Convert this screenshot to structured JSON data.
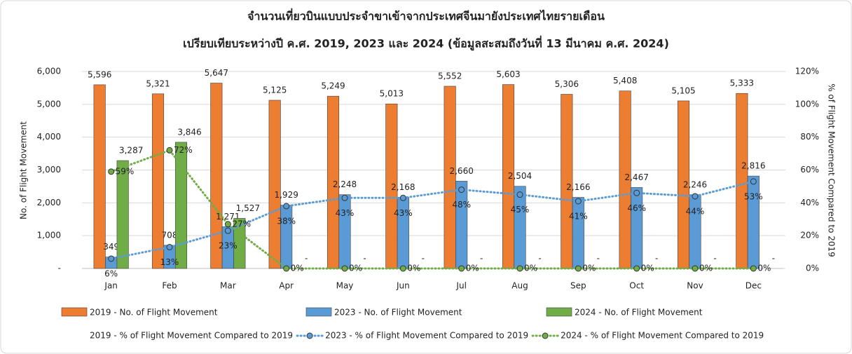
{
  "chart_data": {
    "type": "bar",
    "title": "จำนวนเที่ยวบินแบบประจำขาเข้าจากประเทศจีนมายังประเทศไทยรายเดือน",
    "subtitle": "เปรียบเทียบระหว่างปี ค.ศ. 2019, 2023 และ 2024 (ข้อมูลสะสมถึงวันที่ 13 มีนาคม ค.ศ. 2024)",
    "y_label": "No. of Flight Movement",
    "y2_label": "% of Flight Movement Compared to 2019",
    "categories": [
      "Jan",
      "Feb",
      "Mar",
      "Apr",
      "May",
      "Jun",
      "Jul",
      "Aug",
      "Sep",
      "Oct",
      "Nov",
      "Dec"
    ],
    "ylim": [
      0,
      6000
    ],
    "yticks": [
      {
        "value": 0,
        "label": "-"
      },
      {
        "value": 1000,
        "label": "1,000"
      },
      {
        "value": 2000,
        "label": "2,000"
      },
      {
        "value": 3000,
        "label": "3,000"
      },
      {
        "value": 4000,
        "label": "4,000"
      },
      {
        "value": 5000,
        "label": "5,000"
      },
      {
        "value": 6000,
        "label": "6,000"
      }
    ],
    "y2lim": [
      0,
      120
    ],
    "y2ticks": [
      {
        "value": 0,
        "label": "0%"
      },
      {
        "value": 20,
        "label": "20%"
      },
      {
        "value": 40,
        "label": "40%"
      },
      {
        "value": 60,
        "label": "60%"
      },
      {
        "value": 80,
        "label": "80%"
      },
      {
        "value": 100,
        "label": "100%"
      },
      {
        "value": 120,
        "label": "120%"
      }
    ],
    "grid": true,
    "series": [
      {
        "name": "2019 - No. of Flight Movement",
        "type": "bar",
        "color": "#ed7d31",
        "values": [
          5596,
          5321,
          5647,
          5125,
          5249,
          5013,
          5552,
          5603,
          5306,
          5408,
          5105,
          5333
        ],
        "value_labels": [
          "5,596",
          "5,321",
          "5,647",
          "5,125",
          "5,249",
          "5,013",
          "5,552",
          "5,603",
          "5,306",
          "5,408",
          "5,105",
          "5,333"
        ]
      },
      {
        "name": "2023 - No. of Flight Movement",
        "type": "bar",
        "color": "#5b9bd5",
        "values": [
          349,
          708,
          1271,
          1929,
          2248,
          2168,
          2660,
          2504,
          2166,
          2467,
          2246,
          2816
        ],
        "value_labels": [
          "349",
          "708",
          "1,271",
          "1,929",
          "2,248",
          "2,168",
          "2,660",
          "2,504",
          "2,166",
          "2,467",
          "2,246",
          "2,816"
        ]
      },
      {
        "name": "2024 - No. of Flight Movement",
        "type": "bar",
        "color": "#70ad47",
        "values": [
          3287,
          3846,
          1527,
          0,
          0,
          0,
          0,
          0,
          0,
          0,
          0,
          0
        ],
        "value_labels": [
          "3,287",
          "3,846",
          "1,527",
          "-",
          "-",
          "-",
          "-",
          "-",
          "-",
          "-",
          "-",
          "-"
        ]
      },
      {
        "name": "2019 - % of Flight Movement Compared to 2019",
        "type": "line",
        "color": "#a5a5a5",
        "axis": "y2"
      },
      {
        "name": "2023 - % of Flight Movement Compared to 2019",
        "type": "line",
        "color": "#5b9bd5",
        "axis": "y2",
        "values": [
          6,
          13,
          23,
          38,
          43,
          43,
          48,
          45,
          41,
          46,
          44,
          53
        ],
        "value_labels": [
          "6%",
          "13%",
          "23%",
          "38%",
          "43%",
          "43%",
          "48%",
          "45%",
          "41%",
          "46%",
          "44%",
          "53%"
        ]
      },
      {
        "name": "2024 - % of Flight Movement Compared to 2019",
        "type": "line",
        "color": "#70ad47",
        "axis": "y2",
        "values": [
          59,
          72,
          27,
          0,
          0,
          0,
          0,
          0,
          0,
          0,
          0,
          0
        ],
        "value_labels": [
          "59%",
          "72%",
          "27%",
          "0%",
          "0%",
          "0%",
          "0%",
          "0%",
          "0%",
          "0%",
          "0%",
          "0%"
        ]
      }
    ]
  }
}
